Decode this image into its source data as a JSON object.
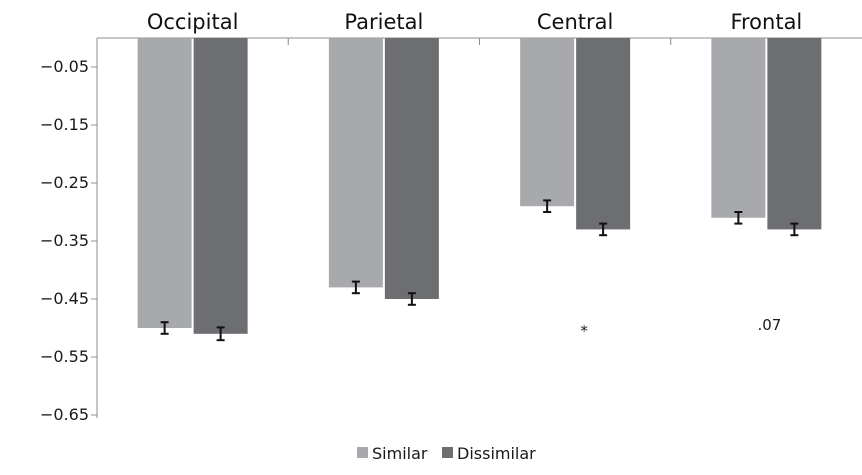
{
  "chart_data": {
    "type": "bar",
    "categories": [
      "Occipital",
      "Parietal",
      "Central",
      "Frontal"
    ],
    "series": [
      {
        "name": "Similar",
        "values": [
          -0.5,
          -0.43,
          -0.29,
          -0.31
        ],
        "errors": [
          0.01,
          0.01,
          0.01,
          0.01
        ],
        "color": "#a8a9ac"
      },
      {
        "name": "Dissimilar",
        "values": [
          -0.51,
          -0.45,
          -0.33,
          -0.33
        ],
        "errors": [
          0.011,
          0.01,
          0.01,
          0.01
        ],
        "color": "#6d6e71"
      }
    ],
    "y_ticks": [
      "−0.05",
      "−0.15",
      "−0.25",
      "−0.35",
      "−0.45",
      "−0.55",
      "−0.65"
    ],
    "y_tick_values": [
      -0.05,
      -0.15,
      -0.25,
      -0.35,
      -0.45,
      -0.55,
      -0.65
    ],
    "ylim": [
      -0.65,
      0.0
    ],
    "annotations": [
      {
        "category": "Central",
        "text": "*"
      },
      {
        "category": "Frontal",
        "text": ".07"
      }
    ],
    "legend_position": "bottom-center",
    "category_label_position": "top",
    "grid": false
  }
}
